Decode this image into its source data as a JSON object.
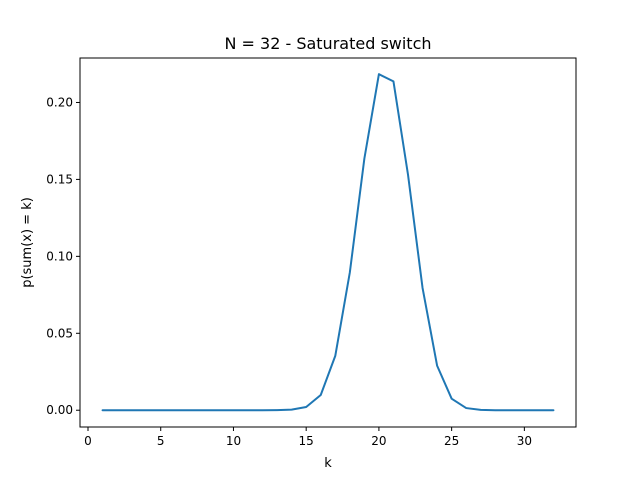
{
  "chart_data": {
    "type": "line",
    "title": "N = 32 - Saturated switch",
    "xlabel": "k",
    "ylabel": "p(sum(x) = k)",
    "xlim": [
      -0.55,
      33.55
    ],
    "ylim": [
      -0.0109,
      0.2289
    ],
    "xticks": [
      0,
      5,
      10,
      15,
      20,
      25,
      30
    ],
    "yticks": [
      0.0,
      0.05,
      0.1,
      0.15,
      0.2
    ],
    "ytick_labels": [
      "0.00",
      "0.05",
      "0.10",
      "0.15",
      "0.20"
    ],
    "grid": false,
    "color": "#1f77b4",
    "x": [
      1,
      2,
      3,
      4,
      5,
      6,
      7,
      8,
      9,
      10,
      11,
      12,
      13,
      14,
      15,
      16,
      17,
      18,
      19,
      20,
      21,
      22,
      23,
      24,
      25,
      26,
      27,
      28,
      29,
      30,
      31,
      32
    ],
    "y": [
      0,
      0,
      0,
      0,
      0,
      0,
      0,
      0,
      0,
      0,
      0,
      0,
      0.0001,
      0.0004,
      0.0021,
      0.0099,
      0.0353,
      0.0895,
      0.1635,
      0.2184,
      0.2137,
      0.1531,
      0.0795,
      0.029,
      0.0075,
      0.0014,
      0.0002,
      0,
      0,
      0,
      0,
      0
    ]
  }
}
